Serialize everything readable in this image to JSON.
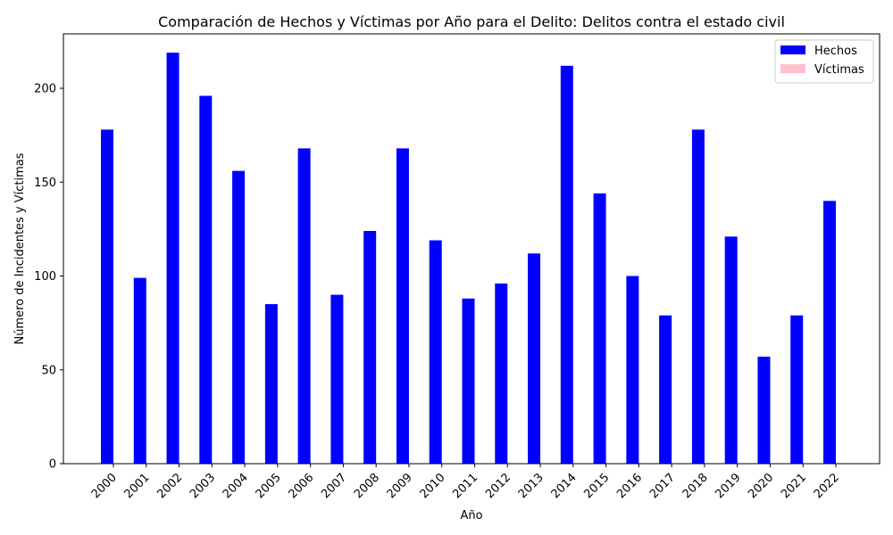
{
  "chart_data": {
    "type": "bar",
    "title": "Comparación de Hechos y Víctimas por Año para el Delito: Delitos contra el estado civil",
    "xlabel": "Año",
    "ylabel": "Número de Incidentes y Víctimas",
    "categories": [
      "2000",
      "2001",
      "2002",
      "2003",
      "2004",
      "2005",
      "2006",
      "2007",
      "2008",
      "2009",
      "2010",
      "2011",
      "2012",
      "2013",
      "2014",
      "2015",
      "2016",
      "2017",
      "2018",
      "2019",
      "2020",
      "2021",
      "2022"
    ],
    "series": [
      {
        "name": "Hechos",
        "color": "#0000ff",
        "values": [
          178,
          99,
          219,
          196,
          156,
          85,
          168,
          90,
          124,
          168,
          119,
          88,
          96,
          112,
          212,
          144,
          100,
          79,
          178,
          121,
          57,
          79,
          140
        ]
      },
      {
        "name": "Víctimas",
        "color": "#ffc0cb",
        "values": [
          0,
          0,
          0,
          0,
          0,
          0,
          0,
          0,
          0,
          0,
          0,
          0,
          0,
          0,
          0,
          0,
          0,
          0,
          0,
          0,
          0,
          0,
          0
        ]
      }
    ],
    "ylim": [
      0,
      229
    ],
    "yticks": [
      0,
      50,
      100,
      150,
      200
    ],
    "legend_position": "top-right",
    "grid": false
  }
}
